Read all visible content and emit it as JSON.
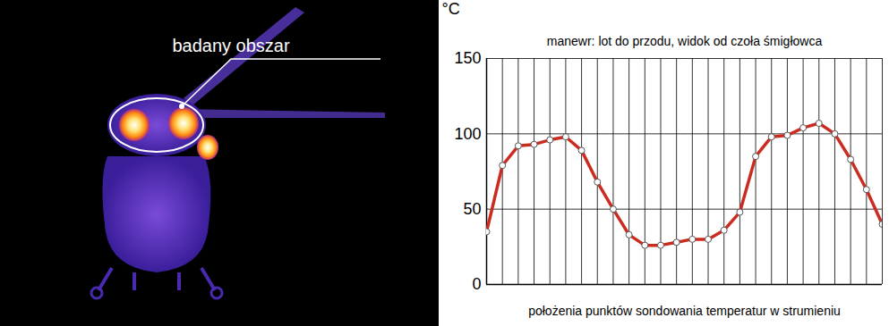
{
  "thermal_image": {
    "label": "badany obszar"
  },
  "chart_data": {
    "type": "line",
    "title": "manewr: lot do przodu, widok od czoła śmigłowca",
    "x_label": "położenia punktów sondowania temperatur w strumieniu",
    "y_label": "°C",
    "x": [
      0,
      1,
      2,
      3,
      4,
      5,
      6,
      7,
      8,
      9,
      10,
      11,
      12,
      13,
      14,
      15,
      16,
      17,
      18,
      19,
      20,
      21,
      22,
      23,
      24,
      25
    ],
    "values": [
      35,
      79,
      92,
      93,
      96,
      98,
      89,
      68,
      50,
      33,
      26,
      26,
      28,
      30,
      30,
      36,
      48,
      85,
      98,
      99,
      104,
      107,
      100,
      83,
      63,
      40
    ],
    "color": "#cc2b1f",
    "marker": "circle",
    "xlim": [
      0,
      25
    ],
    "xticks": [
      0,
      1,
      2,
      3,
      4,
      5,
      6,
      7,
      8,
      9,
      10,
      11,
      12,
      13,
      14,
      15,
      16,
      17,
      18,
      19,
      20,
      21,
      22,
      23,
      24,
      25
    ],
    "ylim": [
      0,
      150
    ],
    "yticks": [
      0,
      50,
      100,
      150
    ],
    "grid": true,
    "tick_labels": "y"
  }
}
